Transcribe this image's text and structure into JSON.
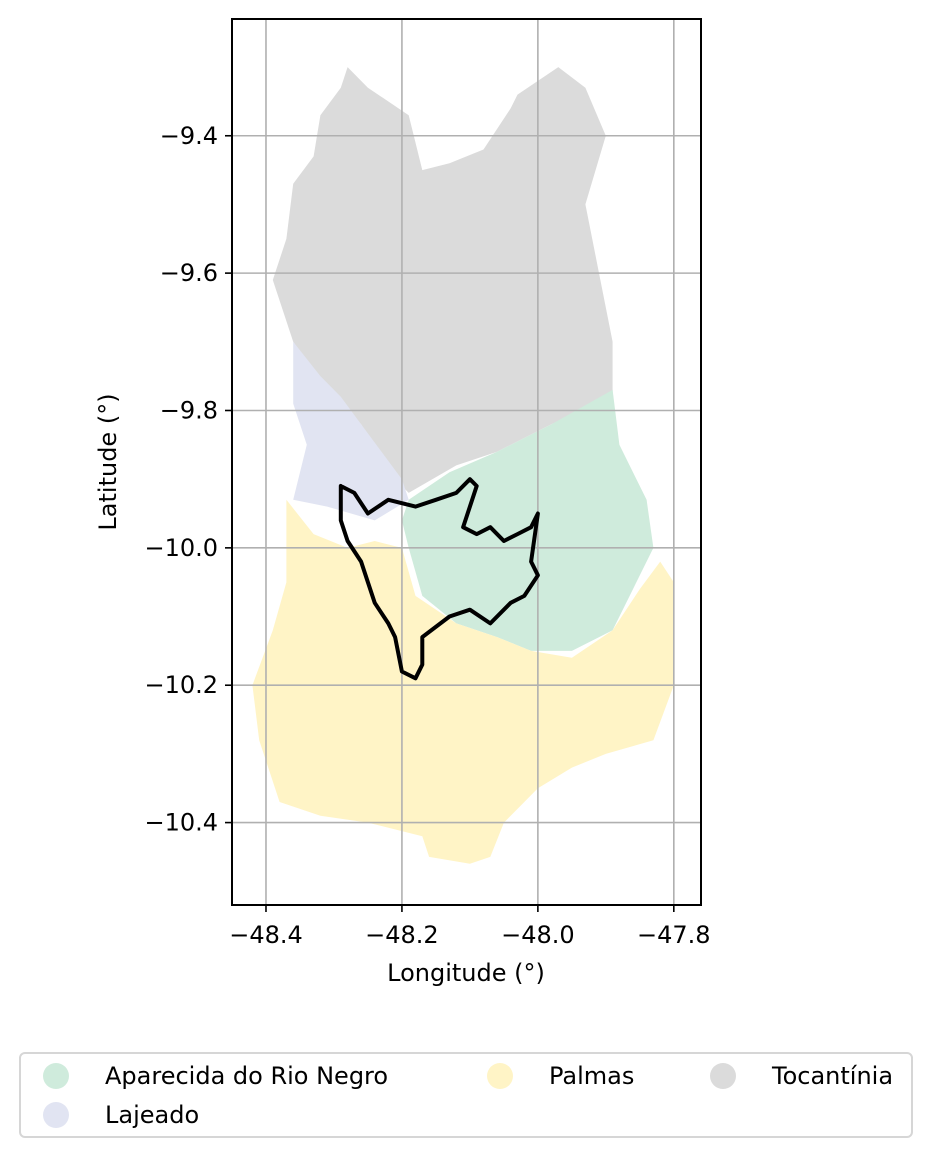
{
  "chart_data": {
    "type": "map",
    "xlabel": "Longitude (°)",
    "ylabel": "Latitude (°)",
    "xlim": [
      -48.45,
      -47.76
    ],
    "ylim": [
      -10.52,
      -9.23
    ],
    "xticks": [
      -48.4,
      -48.2,
      -48.0,
      -47.8
    ],
    "xtick_labels": [
      "−48.4",
      "−48.2",
      "−48.0",
      "−47.8"
    ],
    "yticks": [
      -9.4,
      -9.6,
      -9.8,
      -10.0,
      -10.2,
      -10.4
    ],
    "ytick_labels": [
      "−9.4",
      "−9.6",
      "−9.8",
      "−10.0",
      "−10.2",
      "−10.4"
    ],
    "grid": true,
    "legend_position": "bottom",
    "regions": [
      {
        "name": "Tocantínia",
        "color": "#dbdbdb",
        "polygon": [
          [
            -48.29,
            -9.33
          ],
          [
            -48.28,
            -9.3
          ],
          [
            -48.25,
            -9.33
          ],
          [
            -48.19,
            -9.37
          ],
          [
            -48.17,
            -9.45
          ],
          [
            -48.13,
            -9.44
          ],
          [
            -48.08,
            -9.42
          ],
          [
            -48.04,
            -9.36
          ],
          [
            -48.03,
            -9.34
          ],
          [
            -47.97,
            -9.3
          ],
          [
            -47.93,
            -9.33
          ],
          [
            -47.9,
            -9.4
          ],
          [
            -47.93,
            -9.5
          ],
          [
            -47.91,
            -9.6
          ],
          [
            -47.89,
            -9.7
          ],
          [
            -47.89,
            -9.78
          ],
          [
            -47.98,
            -9.82
          ],
          [
            -48.06,
            -9.86
          ],
          [
            -48.12,
            -9.88
          ],
          [
            -48.19,
            -9.92
          ],
          [
            -48.21,
            -9.9
          ],
          [
            -48.26,
            -9.82
          ],
          [
            -48.31,
            -9.77
          ],
          [
            -48.36,
            -9.7
          ],
          [
            -48.39,
            -9.61
          ],
          [
            -48.37,
            -9.55
          ],
          [
            -48.36,
            -9.47
          ],
          [
            -48.33,
            -9.43
          ],
          [
            -48.32,
            -9.37
          ]
        ]
      },
      {
        "name": "Lajeado",
        "color": "#e1e4f2",
        "polygon": [
          [
            -48.36,
            -9.7
          ],
          [
            -48.32,
            -9.75
          ],
          [
            -48.29,
            -9.78
          ],
          [
            -48.26,
            -9.82
          ],
          [
            -48.23,
            -9.86
          ],
          [
            -48.2,
            -9.9
          ],
          [
            -48.19,
            -9.93
          ],
          [
            -48.24,
            -9.96
          ],
          [
            -48.31,
            -9.94
          ],
          [
            -48.36,
            -9.93
          ],
          [
            -48.34,
            -9.85
          ],
          [
            -48.36,
            -9.79
          ]
        ]
      },
      {
        "name": "Aparecida do Rio Negro",
        "color": "#cfebdc",
        "polygon": [
          [
            -48.19,
            -9.93
          ],
          [
            -48.13,
            -9.89
          ],
          [
            -48.06,
            -9.86
          ],
          [
            -47.98,
            -9.82
          ],
          [
            -47.89,
            -9.77
          ],
          [
            -47.88,
            -9.85
          ],
          [
            -47.84,
            -9.93
          ],
          [
            -47.83,
            -10.0
          ],
          [
            -47.86,
            -10.06
          ],
          [
            -47.89,
            -10.12
          ],
          [
            -47.95,
            -10.15
          ],
          [
            -48.01,
            -10.15
          ],
          [
            -48.06,
            -10.13
          ],
          [
            -48.12,
            -10.11
          ],
          [
            -48.17,
            -10.07
          ],
          [
            -48.19,
            -10.0
          ],
          [
            -48.2,
            -9.96
          ]
        ]
      },
      {
        "name": "Palmas",
        "color": "#fff4c6",
        "polygon": [
          [
            -48.37,
            -9.93
          ],
          [
            -48.33,
            -9.98
          ],
          [
            -48.28,
            -10.0
          ],
          [
            -48.24,
            -9.99
          ],
          [
            -48.2,
            -10.0
          ],
          [
            -48.18,
            -10.07
          ],
          [
            -48.12,
            -10.11
          ],
          [
            -48.06,
            -10.13
          ],
          [
            -48.01,
            -10.15
          ],
          [
            -47.95,
            -10.16
          ],
          [
            -47.89,
            -10.12
          ],
          [
            -47.85,
            -10.06
          ],
          [
            -47.82,
            -10.02
          ],
          [
            -47.8,
            -10.05
          ],
          [
            -47.8,
            -10.2
          ],
          [
            -47.83,
            -10.28
          ],
          [
            -47.9,
            -10.3
          ],
          [
            -47.95,
            -10.32
          ],
          [
            -48.0,
            -10.35
          ],
          [
            -48.05,
            -10.4
          ],
          [
            -48.07,
            -10.45
          ],
          [
            -48.1,
            -10.46
          ],
          [
            -48.16,
            -10.45
          ],
          [
            -48.17,
            -10.42
          ],
          [
            -48.25,
            -10.4
          ],
          [
            -48.32,
            -10.39
          ],
          [
            -48.38,
            -10.37
          ],
          [
            -48.41,
            -10.28
          ],
          [
            -48.42,
            -10.2
          ],
          [
            -48.39,
            -10.12
          ],
          [
            -48.37,
            -10.05
          ]
        ]
      }
    ],
    "outline": {
      "color": "#000000",
      "polyline": [
        [
          -48.29,
          -9.91
        ],
        [
          -48.27,
          -9.92
        ],
        [
          -48.25,
          -9.95
        ],
        [
          -48.22,
          -9.93
        ],
        [
          -48.18,
          -9.94
        ],
        [
          -48.15,
          -9.93
        ],
        [
          -48.12,
          -9.92
        ],
        [
          -48.1,
          -9.9
        ],
        [
          -48.09,
          -9.91
        ],
        [
          -48.1,
          -9.94
        ],
        [
          -48.11,
          -9.97
        ],
        [
          -48.09,
          -9.98
        ],
        [
          -48.07,
          -9.97
        ],
        [
          -48.05,
          -9.99
        ],
        [
          -48.03,
          -9.98
        ],
        [
          -48.01,
          -9.97
        ],
        [
          -48.0,
          -9.95
        ],
        [
          -48.01,
          -10.02
        ],
        [
          -48.0,
          -10.04
        ],
        [
          -48.02,
          -10.07
        ],
        [
          -48.04,
          -10.08
        ],
        [
          -48.07,
          -10.11
        ],
        [
          -48.1,
          -10.09
        ],
        [
          -48.13,
          -10.1
        ],
        [
          -48.17,
          -10.13
        ],
        [
          -48.17,
          -10.17
        ],
        [
          -48.18,
          -10.19
        ],
        [
          -48.2,
          -10.18
        ],
        [
          -48.21,
          -10.13
        ],
        [
          -48.22,
          -10.11
        ],
        [
          -48.24,
          -10.08
        ],
        [
          -48.25,
          -10.05
        ],
        [
          -48.26,
          -10.02
        ],
        [
          -48.28,
          -9.99
        ],
        [
          -48.29,
          -9.96
        ],
        [
          -48.29,
          -9.92
        ],
        [
          -48.29,
          -9.91
        ]
      ]
    },
    "legend": [
      {
        "label": "Aparecida do Rio Negro",
        "color": "#cfebdc"
      },
      {
        "label": "Palmas",
        "color": "#fff4c6"
      },
      {
        "label": "Tocantínia",
        "color": "#dbdbdb"
      },
      {
        "label": "Lajeado",
        "color": "#e1e4f2"
      }
    ]
  }
}
